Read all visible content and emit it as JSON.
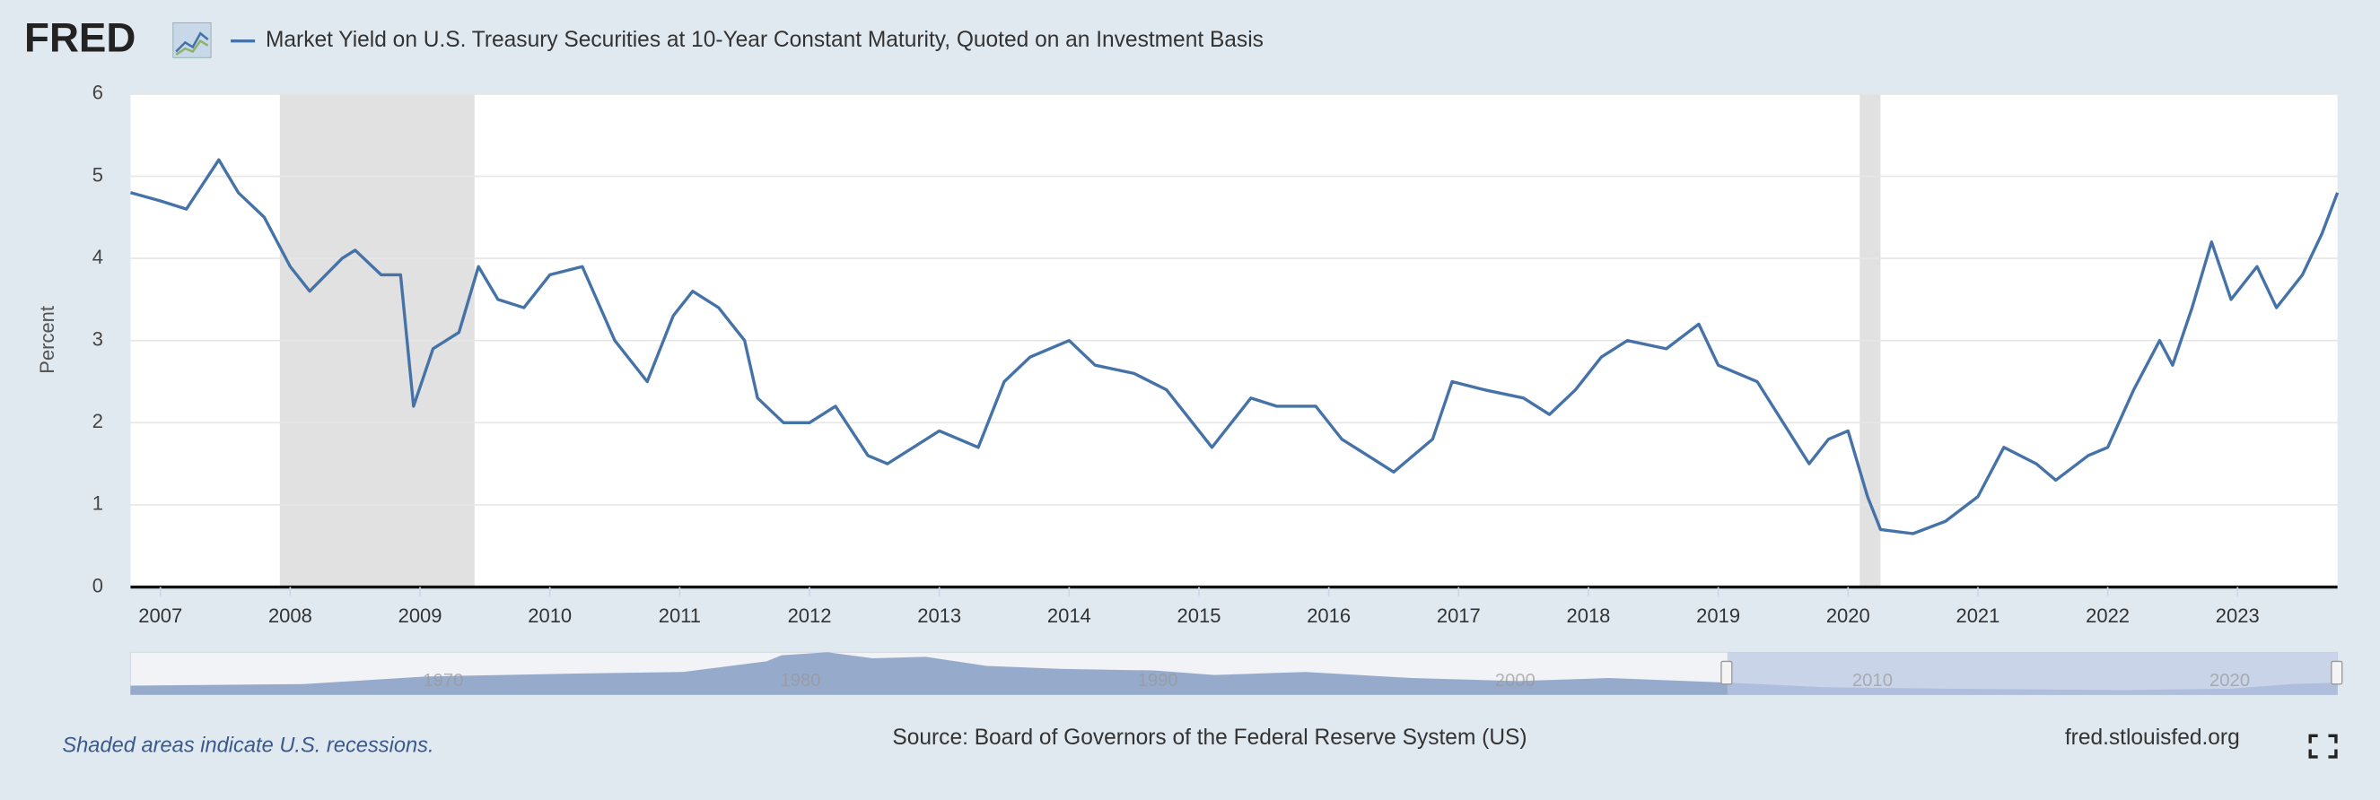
{
  "logo": "FRED",
  "chart_data": {
    "type": "line",
    "series": [
      {
        "name": "Market Yield on U.S. Treasury Securities at 10-Year Constant Maturity, Quoted on an Investment Basis",
        "color": "#4572a7",
        "values": [
          4.8,
          4.7,
          4.6,
          5.2,
          4.8,
          4.5,
          3.9,
          3.6,
          4.0,
          4.1,
          3.8,
          3.8,
          2.2,
          2.9,
          3.1,
          3.9,
          3.5,
          3.4,
          3.8,
          3.9,
          3.0,
          2.5,
          3.3,
          3.6,
          3.4,
          3.0,
          2.3,
          2.0,
          2.0,
          2.2,
          1.6,
          1.5,
          1.7,
          1.9,
          1.7,
          2.5,
          2.8,
          3.0,
          2.7,
          2.6,
          2.4,
          1.9,
          1.7,
          2.3,
          2.2,
          2.2,
          1.8,
          1.4,
          1.8,
          2.5,
          2.4,
          2.3,
          2.1,
          2.4,
          2.8,
          3.0,
          2.9,
          3.2,
          2.7,
          2.5,
          2.0,
          1.5,
          1.8,
          1.9,
          1.1,
          0.7,
          0.65,
          0.8,
          1.1,
          1.7,
          1.5,
          1.3,
          1.6,
          1.7,
          2.4,
          3.0,
          2.7,
          3.4,
          4.2,
          3.5,
          3.9,
          3.4,
          3.8,
          4.3,
          4.8
        ]
      }
    ],
    "x": [
      2006.77,
      2007.0,
      2007.2,
      2007.45,
      2007.6,
      2007.8,
      2008.0,
      2008.15,
      2008.4,
      2008.5,
      2008.7,
      2008.85,
      2008.95,
      2009.1,
      2009.3,
      2009.45,
      2009.6,
      2009.8,
      2010.0,
      2010.25,
      2010.5,
      2010.75,
      2010.95,
      2011.1,
      2011.3,
      2011.5,
      2011.6,
      2011.8,
      2012.0,
      2012.2,
      2012.45,
      2012.6,
      2012.8,
      2013.0,
      2013.3,
      2013.5,
      2013.7,
      2014.0,
      2014.2,
      2014.5,
      2014.75,
      2015.0,
      2015.1,
      2015.4,
      2015.6,
      2015.9,
      2016.1,
      2016.5,
      2016.8,
      2016.95,
      2017.2,
      2017.5,
      2017.7,
      2017.9,
      2018.1,
      2018.3,
      2018.6,
      2018.85,
      2019.0,
      2019.3,
      2019.5,
      2019.7,
      2019.85,
      2020.0,
      2020.15,
      2020.25,
      2020.5,
      2020.75,
      2021.0,
      2021.2,
      2021.45,
      2021.6,
      2021.85,
      2022.0,
      2022.2,
      2022.4,
      2022.5,
      2022.65,
      2022.8,
      2022.95,
      2023.15,
      2023.3,
      2023.5,
      2023.65,
      2023.77
    ],
    "xlim": [
      2006.77,
      2023.77
    ],
    "xticks": [
      2007,
      2008,
      2009,
      2010,
      2011,
      2012,
      2013,
      2014,
      2015,
      2016,
      2017,
      2018,
      2019,
      2020,
      2021,
      2022,
      2023
    ],
    "ylim": [
      0,
      6
    ],
    "yticks": [
      0,
      1,
      2,
      3,
      4,
      5,
      6
    ],
    "ylabel": "Percent",
    "grid": true,
    "recessions": [
      [
        2007.92,
        2009.42
      ],
      [
        2020.09,
        2020.25
      ]
    ],
    "recession_color": "#e1e1e1",
    "note": "Shaded areas indicate U.S. recessions.",
    "source": "Source: Board of Governors of the Federal Reserve System (US)",
    "site": "fred.stlouisfed.org",
    "navigator_labels": [
      "1970",
      "1980",
      "1990",
      "2000",
      "2010",
      "2020"
    ]
  }
}
